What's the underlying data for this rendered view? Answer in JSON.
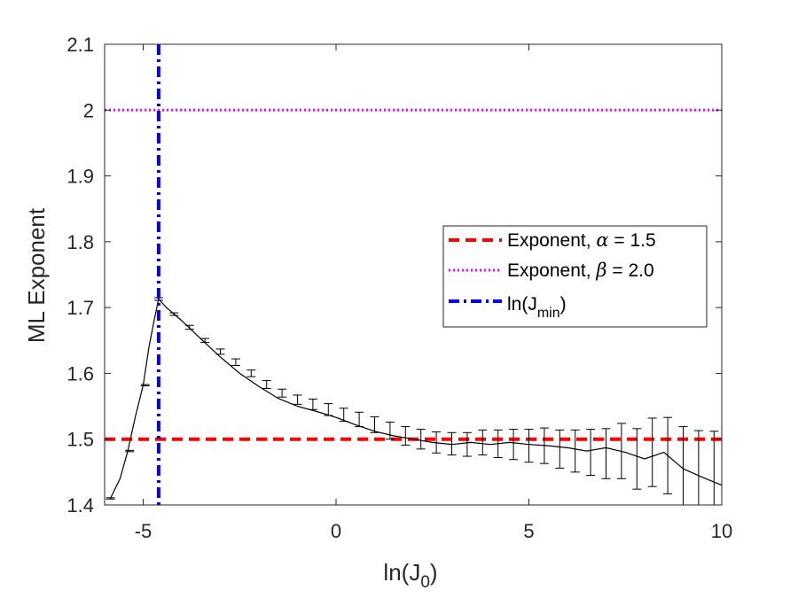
{
  "chart_data": {
    "type": "line",
    "xlabel": "ln(J",
    "xlabel_sub": "0",
    "xlabel_close": ")",
    "ylabel": "ML Exponent",
    "xlim": [
      -6,
      10
    ],
    "ylim": [
      1.4,
      2.1
    ],
    "xticks": [
      -5,
      0,
      5,
      10
    ],
    "xtick_labels": [
      "-5",
      "0",
      "5",
      "10"
    ],
    "yticks": [
      1.4,
      1.5,
      1.6,
      1.7,
      1.8,
      1.9,
      2.0,
      2.1
    ],
    "ytick_labels": [
      "1.4",
      "1.5",
      "1.6",
      "1.7",
      "1.8",
      "1.9",
      "2",
      "2.1"
    ],
    "reference_lines": {
      "alpha": {
        "value": 1.5,
        "color": "#ff0000",
        "style": "dashed"
      },
      "beta": {
        "value": 2.0,
        "color": "#ff00ff",
        "style": "dotted"
      },
      "jmin": {
        "value": -4.6,
        "color": "#0000ff",
        "style": "dashdot"
      }
    },
    "series": [
      {
        "name": "ML Exponent",
        "color": "#000000",
        "curve_x": [
          -5.85,
          -5.6,
          -5.4,
          -5.2,
          -5.0,
          -4.85,
          -4.7,
          -4.6,
          -4.4,
          -4.0,
          -3.5,
          -3.0,
          -2.5,
          -2.0,
          -1.5,
          -1.0,
          -0.5,
          0.0,
          0.5,
          1.0,
          1.5,
          2.0,
          2.5,
          3.0,
          3.5,
          4.0,
          4.5,
          5.0,
          5.5,
          6.0,
          6.5,
          7.0,
          7.5,
          8.0,
          8.5,
          9.0,
          9.5,
          10.0
        ],
        "curve_y": [
          1.41,
          1.44,
          1.482,
          1.535,
          1.582,
          1.64,
          1.685,
          1.713,
          1.7,
          1.68,
          1.652,
          1.625,
          1.6,
          1.58,
          1.562,
          1.55,
          1.542,
          1.533,
          1.522,
          1.512,
          1.505,
          1.5,
          1.495,
          1.492,
          1.495,
          1.492,
          1.495,
          1.492,
          1.49,
          1.487,
          1.482,
          1.487,
          1.48,
          1.47,
          1.48,
          1.455,
          1.442,
          1.43
        ],
        "errorbar_x": [
          -5.85,
          -5.35,
          -4.95,
          -4.6,
          -4.2,
          -3.8,
          -3.4,
          -3.0,
          -2.6,
          -2.2,
          -1.8,
          -1.4,
          -1.0,
          -0.6,
          -0.2,
          0.2,
          0.6,
          1.0,
          1.4,
          1.8,
          2.2,
          2.6,
          3.0,
          3.4,
          3.8,
          4.2,
          4.6,
          5.0,
          5.4,
          5.8,
          6.2,
          6.6,
          7.0,
          7.4,
          7.8,
          8.2,
          8.6,
          9.0,
          9.4,
          9.8
        ],
        "errorbar_y": [
          1.41,
          1.482,
          1.582,
          1.713,
          1.69,
          1.67,
          1.65,
          1.633,
          1.617,
          1.6,
          1.583,
          1.57,
          1.56,
          1.553,
          1.545,
          1.537,
          1.53,
          1.522,
          1.513,
          1.505,
          1.5,
          1.495,
          1.493,
          1.492,
          1.495,
          1.493,
          1.492,
          1.49,
          1.49,
          1.485,
          1.482,
          1.48,
          1.478,
          1.482,
          1.47,
          1.48,
          1.475,
          1.455,
          1.445,
          1.44
        ],
        "errorbar_err": [
          0.001,
          0.001,
          0.001,
          0.002,
          0.002,
          0.003,
          0.003,
          0.004,
          0.005,
          0.005,
          0.006,
          0.006,
          0.007,
          0.008,
          0.009,
          0.01,
          0.011,
          0.012,
          0.013,
          0.014,
          0.015,
          0.016,
          0.017,
          0.018,
          0.019,
          0.021,
          0.023,
          0.025,
          0.027,
          0.029,
          0.032,
          0.035,
          0.038,
          0.042,
          0.046,
          0.052,
          0.058,
          0.064,
          0.068,
          0.072
        ]
      }
    ],
    "legend": {
      "position": "center-right",
      "entries": [
        {
          "prefix": "Exponent, ",
          "symbol": "α",
          "suffix": " = 1.5",
          "color": "#ff0000",
          "style": "dashed"
        },
        {
          "prefix": "Exponent, ",
          "symbol": "β",
          "suffix": " = 2.0",
          "color": "#ff00ff",
          "style": "dotted"
        },
        {
          "prefix": "ln(J",
          "sub": "min",
          "suffix": ")",
          "color": "#0000ff",
          "style": "dashdot"
        }
      ]
    }
  }
}
